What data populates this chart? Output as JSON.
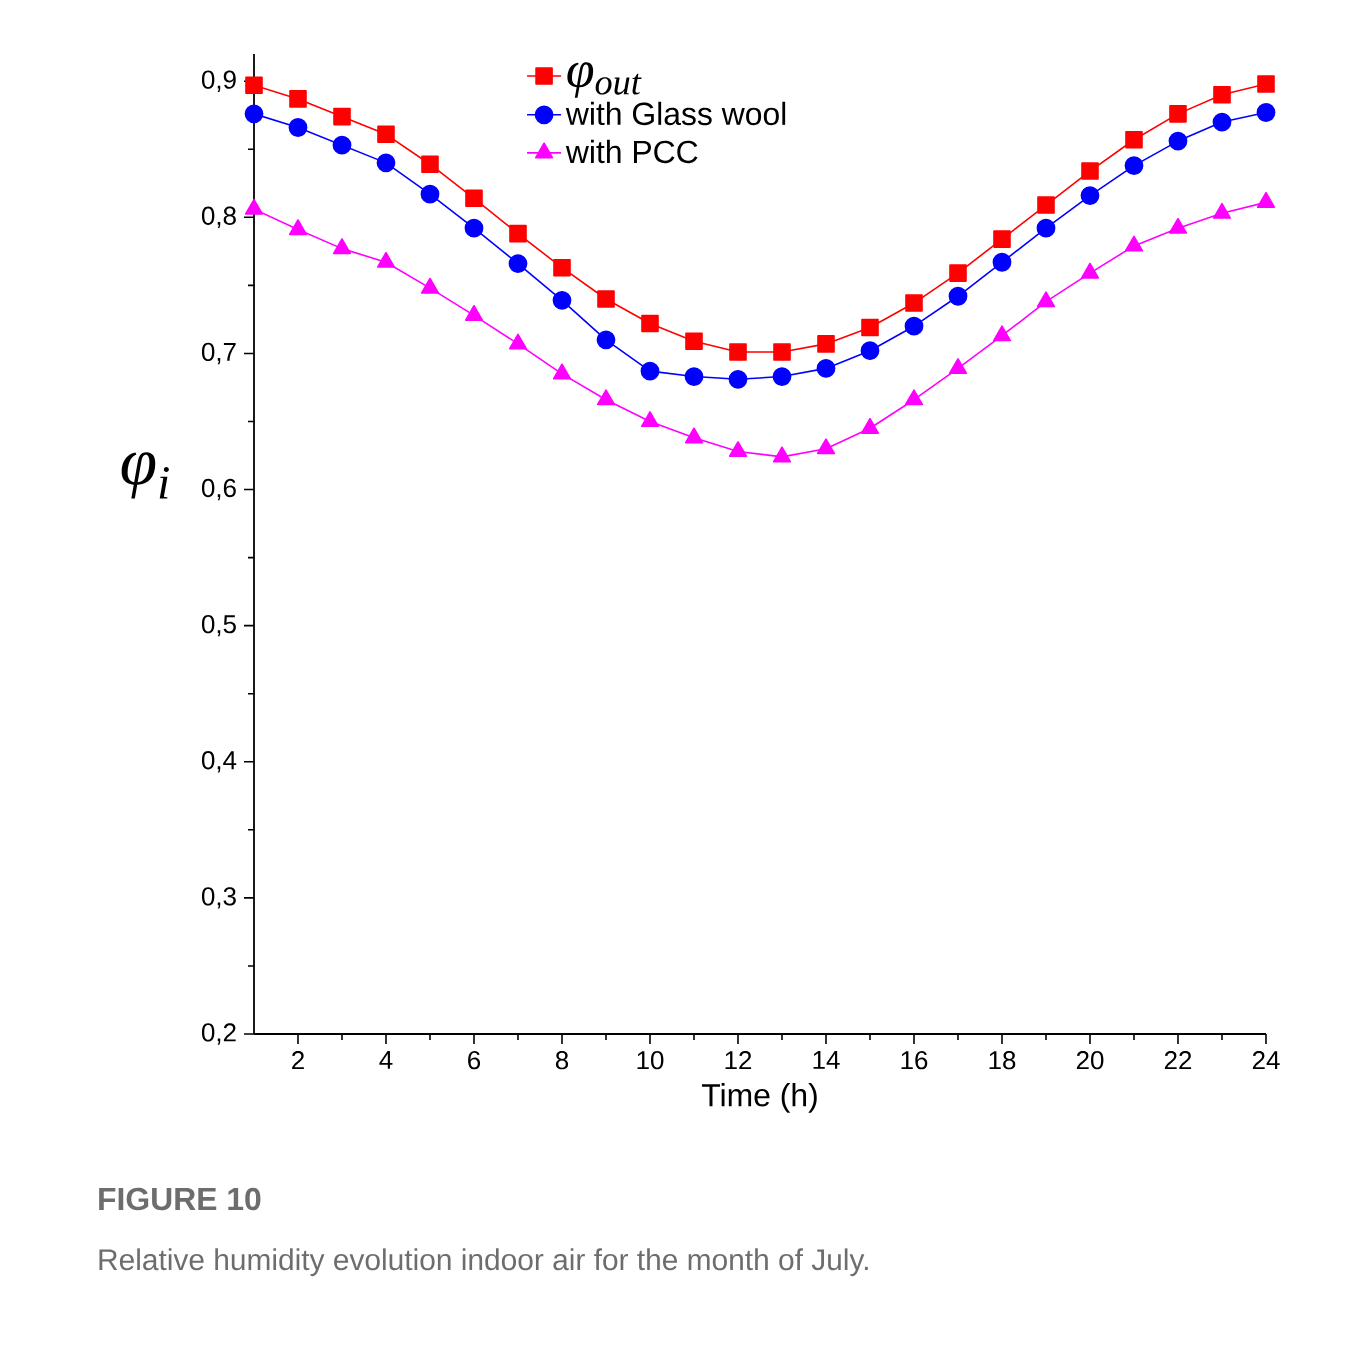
{
  "chart_data": {
    "type": "line",
    "xlabel": "Time (h)",
    "ylabel": "φ$_{i}$",
    "x": [
      1,
      2,
      3,
      4,
      5,
      6,
      7,
      8,
      9,
      10,
      11,
      12,
      13,
      14,
      15,
      16,
      17,
      18,
      19,
      20,
      21,
      22,
      23,
      24
    ],
    "series": [
      {
        "name": "φ$_{out}$",
        "color": "#ff0000",
        "marker": "square",
        "values": [
          0.897,
          0.887,
          0.874,
          0.861,
          0.839,
          0.814,
          0.788,
          0.763,
          0.74,
          0.722,
          0.709,
          0.701,
          0.701,
          0.707,
          0.719,
          0.737,
          0.759,
          0.784,
          0.809,
          0.834,
          0.857,
          0.876,
          0.89,
          0.898
        ]
      },
      {
        "name": "with Glass wool",
        "color": "#0000ff",
        "marker": "circle",
        "values": [
          0.876,
          0.866,
          0.853,
          0.84,
          0.817,
          0.792,
          0.766,
          0.739,
          0.71,
          0.687,
          0.683,
          0.681,
          0.683,
          0.689,
          0.702,
          0.72,
          0.742,
          0.767,
          0.792,
          0.816,
          0.838,
          0.856,
          0.87,
          0.877
        ]
      },
      {
        "name": "with PCC",
        "color": "#ff00ff",
        "marker": "triangle",
        "values": [
          0.806,
          0.791,
          0.777,
          0.767,
          0.748,
          0.728,
          0.707,
          0.685,
          0.666,
          0.65,
          0.638,
          0.628,
          0.624,
          0.63,
          0.645,
          0.666,
          0.689,
          0.713,
          0.738,
          0.759,
          0.779,
          0.792,
          0.803,
          0.811
        ]
      }
    ],
    "xlim": [
      1,
      24
    ],
    "xticks": [
      2,
      4,
      6,
      8,
      10,
      12,
      14,
      16,
      18,
      20,
      22,
      24
    ],
    "ylim": [
      0.2,
      0.92
    ],
    "yticks": [
      {
        "value": 0.2,
        "label": "0,2"
      },
      {
        "value": 0.3,
        "label": "0,3"
      },
      {
        "value": 0.4,
        "label": "0,4"
      },
      {
        "value": 0.5,
        "label": "0,5"
      },
      {
        "value": 0.6,
        "label": "0,6"
      },
      {
        "value": 0.7,
        "label": "0,7"
      },
      {
        "value": 0.8,
        "label": "0,8"
      },
      {
        "value": 0.9,
        "label": "0,9"
      }
    ],
    "grid": false,
    "legend": "top",
    "line_style": "solid",
    "annotations": [
      "FIGURE 10",
      "Relative humidity evolution indoor air for the month of July."
    ]
  }
}
